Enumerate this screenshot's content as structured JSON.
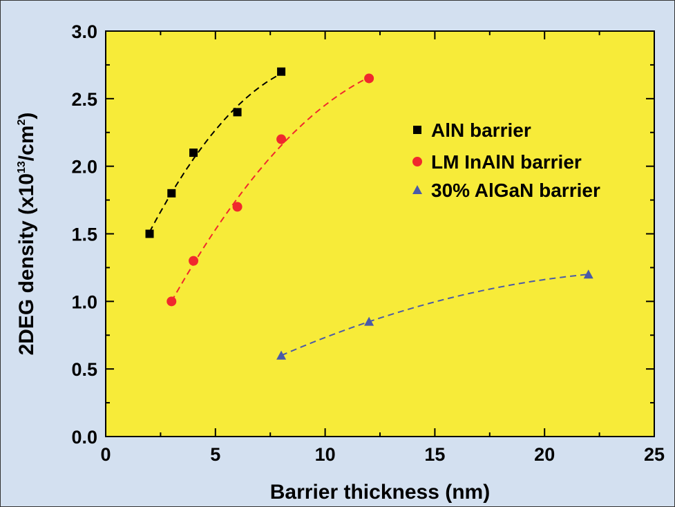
{
  "chart_data": {
    "type": "scatter",
    "xlabel": "Barrier thickness (nm)",
    "ylabel": {
      "base": "2DEG density (x10",
      "exp1": "13",
      "mid": "/cm",
      "exp2": "2",
      "end": ")"
    },
    "xlim": [
      0,
      25
    ],
    "ylim": [
      0,
      3.0
    ],
    "x_ticks": [
      0,
      5,
      10,
      15,
      20,
      25
    ],
    "x_tick_labels": [
      "0",
      "5",
      "10",
      "15",
      "20",
      "25"
    ],
    "y_ticks": [
      0,
      0.5,
      1.0,
      1.5,
      2.0,
      2.5,
      3.0
    ],
    "y_tick_labels": [
      "0.0",
      "0.5",
      "1.0",
      "1.5",
      "2.0",
      "2.5",
      "3.0"
    ],
    "grid": false,
    "legend_position": "right",
    "series": [
      {
        "name": "AlN barrier",
        "marker": "square",
        "color": "#000000",
        "x": [
          2,
          3,
          4,
          6,
          8
        ],
        "y": [
          1.5,
          1.8,
          2.1,
          2.4,
          2.7
        ]
      },
      {
        "name": "LM InAlN barrier",
        "marker": "circle",
        "color": "#f0282d",
        "x": [
          3,
          4,
          6,
          8,
          12
        ],
        "y": [
          1.0,
          1.3,
          1.7,
          2.2,
          2.65
        ]
      },
      {
        "name": "30% AlGaN barrier",
        "marker": "triangle",
        "color": "#4a5aa8",
        "x": [
          8,
          12,
          22
        ],
        "y": [
          0.6,
          0.85,
          1.2
        ]
      }
    ]
  },
  "colors": {
    "plot_background": "#f7eb39",
    "page_background": "#d3e0f0"
  }
}
